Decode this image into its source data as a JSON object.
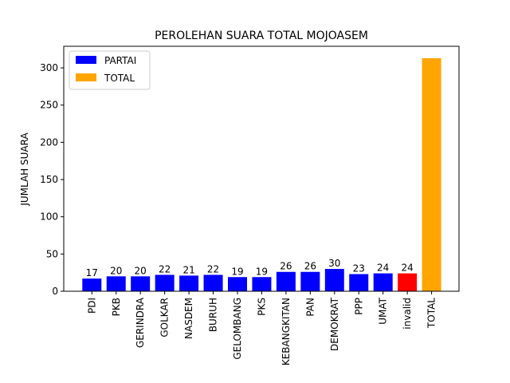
{
  "chart_data": {
    "type": "bar",
    "title": "PEROLEHAN SUARA TOTAL MOJOASEM",
    "xlabel": "",
    "ylabel": "JUMLAH SUARA",
    "ylim": [
      0,
      329
    ],
    "yticks": [
      0,
      50,
      100,
      150,
      200,
      250,
      300
    ],
    "categories": [
      "PDI",
      "PKB",
      "GERINDRA",
      "GOLKAR",
      "NASDEM",
      "BURUH",
      "GELOMBANG",
      "PKS",
      "KEBANGKITAN",
      "PAN",
      "DEMOKRAT",
      "PPP",
      "UMAT",
      "invalid",
      "TOTAL"
    ],
    "values": [
      17,
      20,
      20,
      22,
      21,
      22,
      19,
      19,
      26,
      26,
      30,
      23,
      24,
      24,
      313
    ],
    "data_labels": [
      "17",
      "20",
      "20",
      "22",
      "21",
      "22",
      "19",
      "19",
      "26",
      "26",
      "30",
      "23",
      "24",
      "24",
      ""
    ],
    "bar_colors": [
      "#0000ff",
      "#0000ff",
      "#0000ff",
      "#0000ff",
      "#0000ff",
      "#0000ff",
      "#0000ff",
      "#0000ff",
      "#0000ff",
      "#0000ff",
      "#0000ff",
      "#0000ff",
      "#0000ff",
      "#ff0000",
      "#ffa500"
    ],
    "legend": {
      "placement": "top-left",
      "entries": [
        {
          "label": "PARTAI",
          "color": "#0000ff"
        },
        {
          "label": "TOTAL",
          "color": "#ffa500"
        }
      ]
    },
    "grid": false
  }
}
